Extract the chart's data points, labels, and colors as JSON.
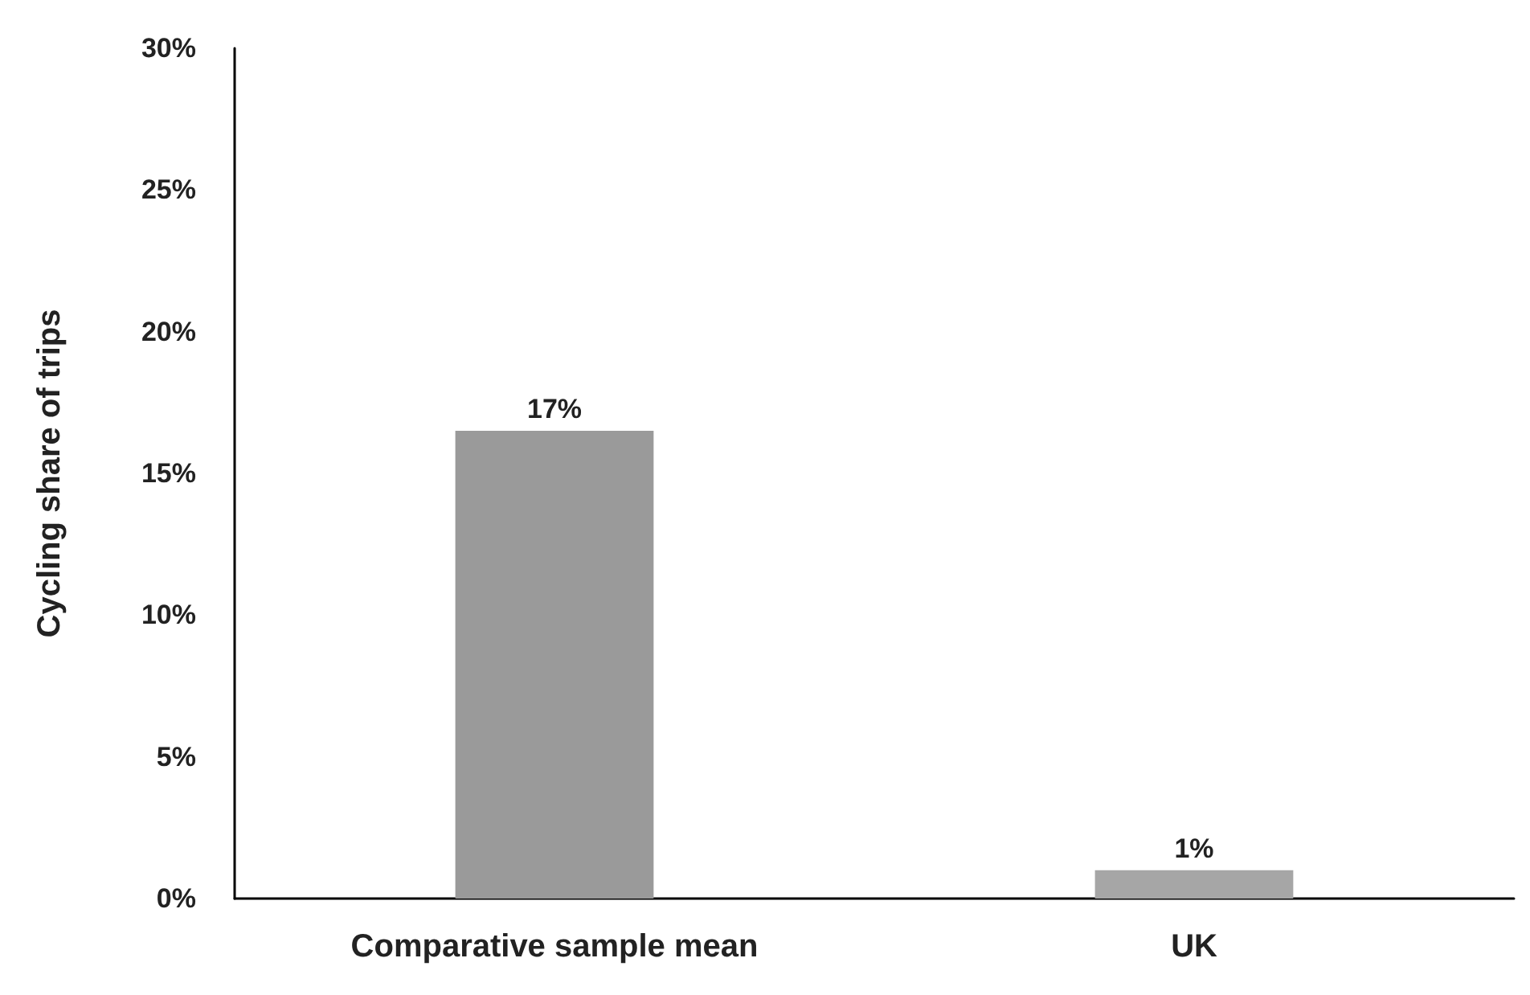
{
  "chart_data": {
    "type": "bar",
    "ylabel": "Cycling share of trips",
    "categories": [
      "Comparative sample mean",
      "UK"
    ],
    "values": [
      16.5,
      1
    ],
    "value_labels": [
      "17%",
      "1%"
    ],
    "colors": [
      "#9a9a9a",
      "#a6a6a6"
    ],
    "ylim": [
      0,
      30
    ],
    "yticks": [
      {
        "value": 0,
        "label": "0%"
      },
      {
        "value": 5,
        "label": "5%"
      },
      {
        "value": 10,
        "label": "10%"
      },
      {
        "value": 15,
        "label": "15%"
      },
      {
        "value": 20,
        "label": "20%"
      },
      {
        "value": 25,
        "label": "25%"
      },
      {
        "value": 30,
        "label": "30%"
      }
    ],
    "grid": false
  }
}
